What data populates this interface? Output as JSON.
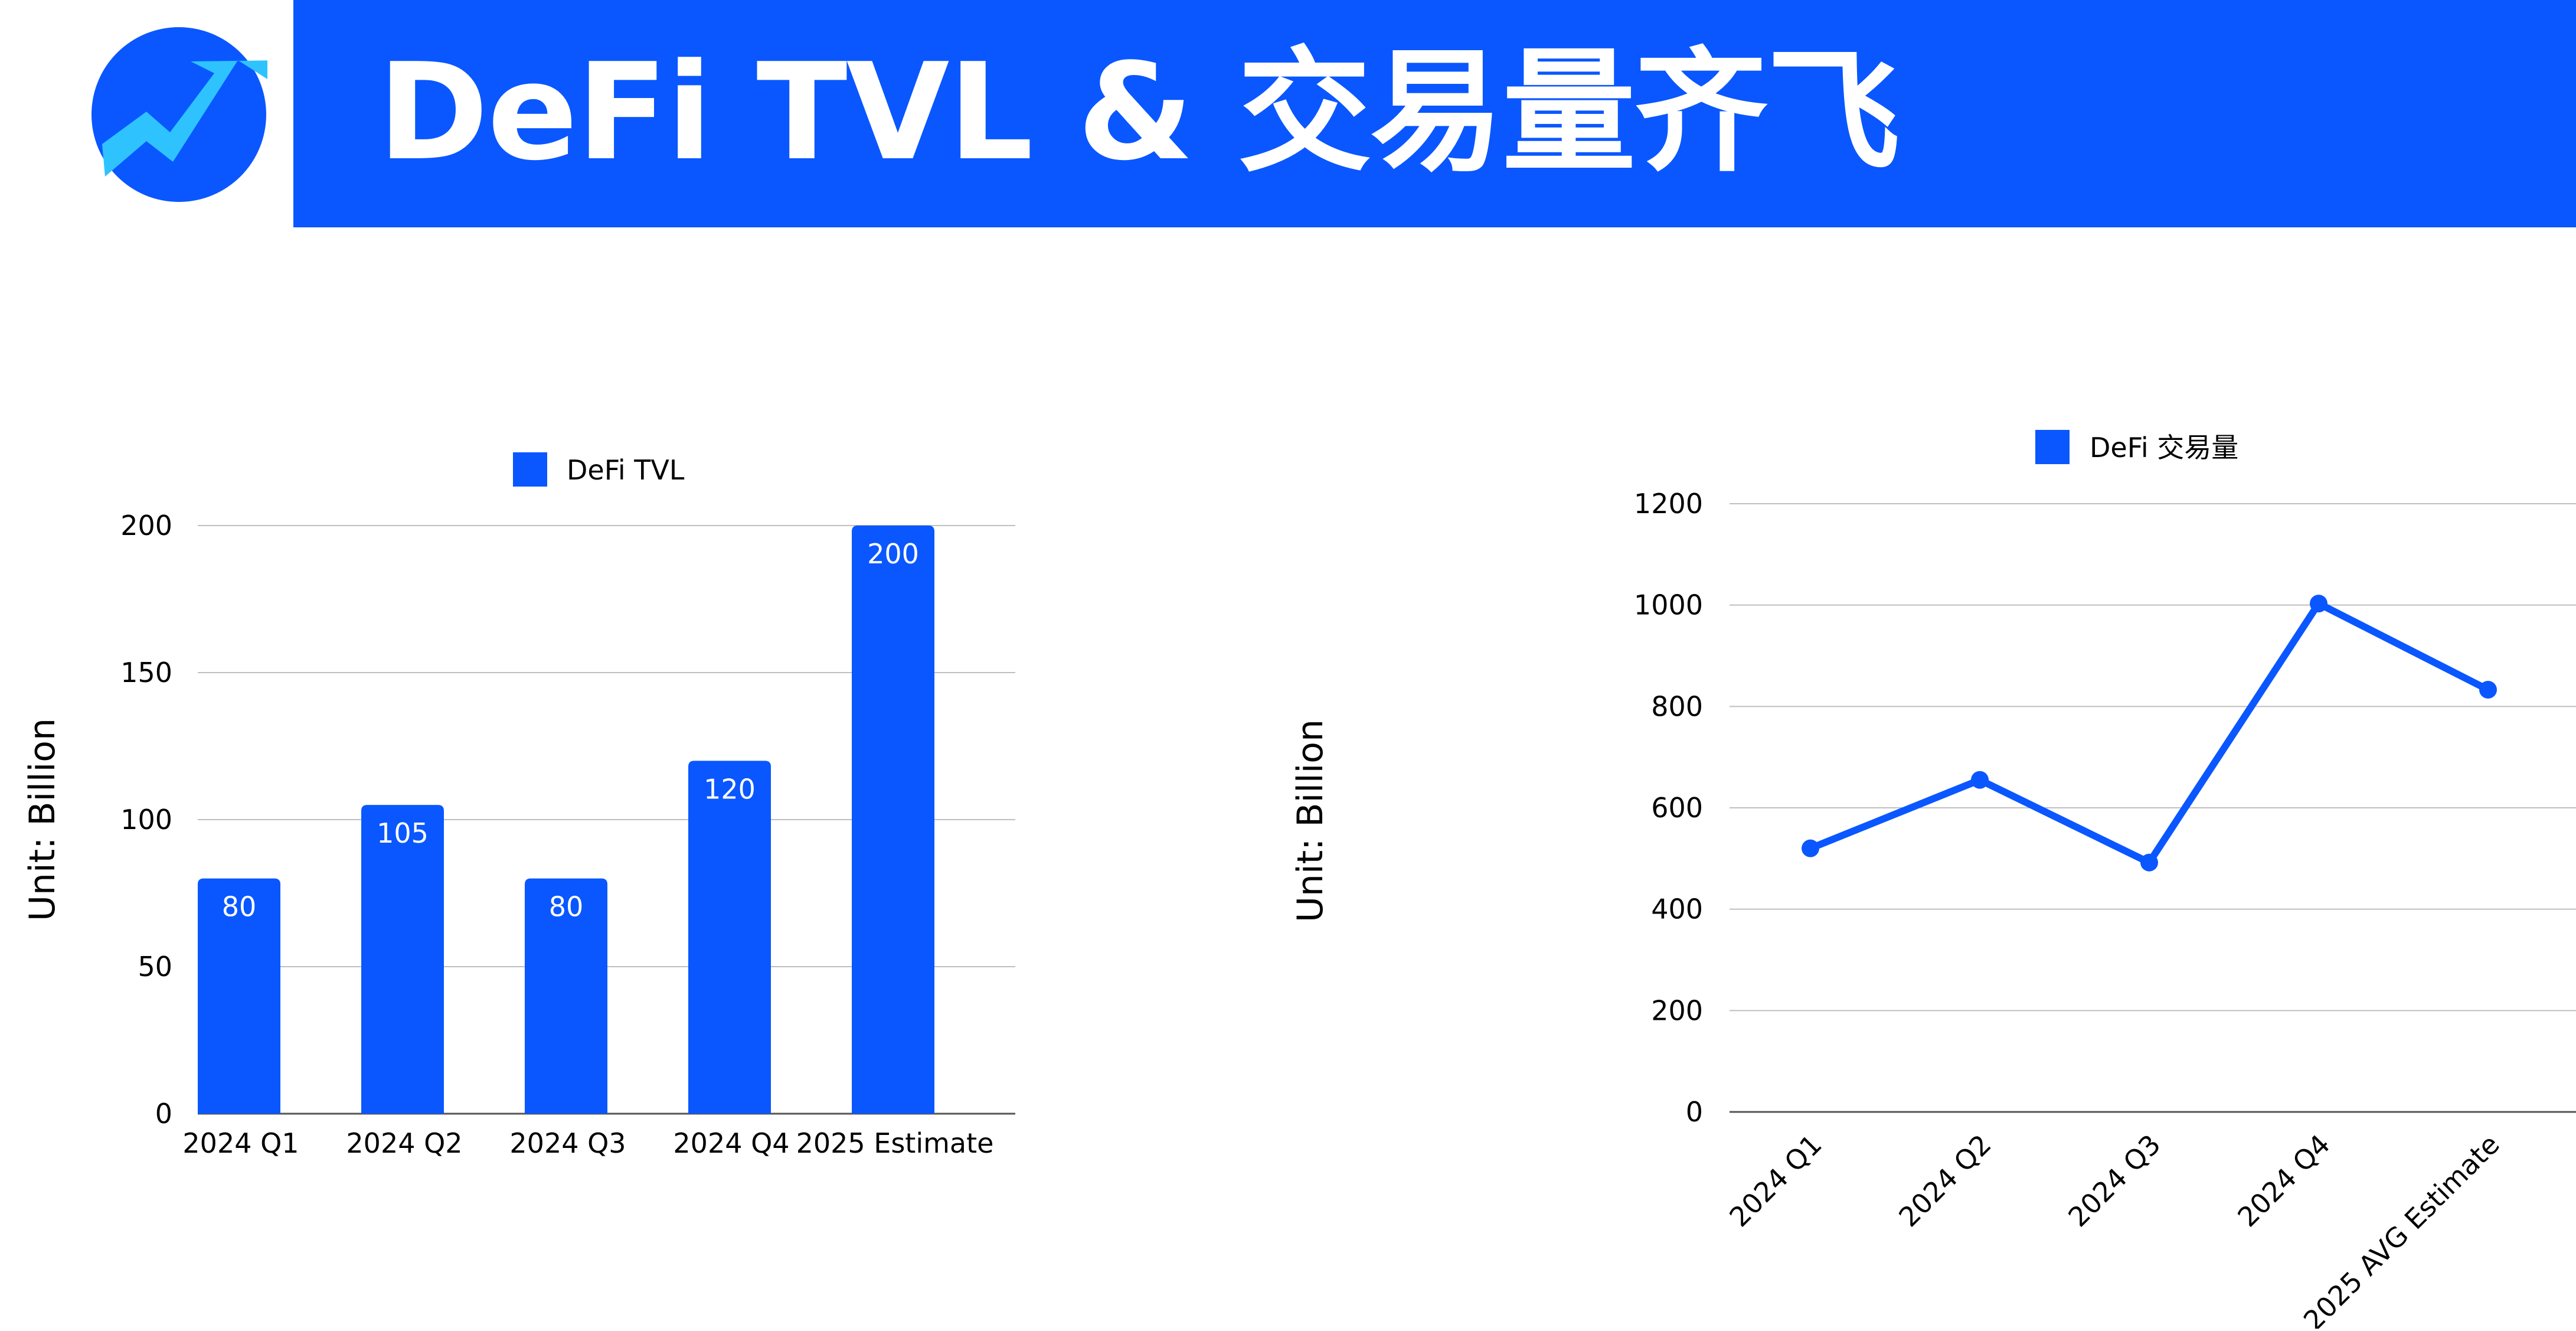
{
  "header": {
    "title": "DeFi TVL & 交易量齐飞"
  },
  "colors": {
    "brand": "#0a57ff",
    "logo_accent": "#2ec3ff",
    "grid": "#bfbfbf",
    "text": "#000000"
  },
  "logo": {
    "icon": "trend-up-icon"
  },
  "chart_data": [
    {
      "type": "bar",
      "title": "",
      "categories": [
        "2024 Q1",
        "2024 Q2",
        "2024 Q3",
        "2024 Q4",
        "2025 Estimate"
      ],
      "series": [
        {
          "name": "DeFi TVL",
          "values": [
            80,
            105,
            80,
            120,
            200
          ]
        }
      ],
      "ylabel": "Unit:  Billion",
      "xlabel": "",
      "ylim": [
        0,
        200
      ],
      "yticks": [
        0,
        50,
        100,
        150,
        200
      ],
      "grid": true,
      "data_labels": true,
      "legend": "top-center"
    },
    {
      "type": "line",
      "title": "",
      "categories": [
        "2024 Q1",
        "2024 Q2",
        "2024 Q3",
        "2024 Q4",
        "2025 AVG Estimate"
      ],
      "series": [
        {
          "name": "DeFi 交易量",
          "values": [
            520,
            655,
            492,
            1003,
            833
          ]
        }
      ],
      "ylabel": "Unit:  Billion",
      "xlabel": "",
      "ylim": [
        0,
        1200
      ],
      "yticks": [
        0,
        200,
        400,
        600,
        800,
        1000,
        1200
      ],
      "grid": true,
      "data_labels": false,
      "legend": "top-center"
    }
  ]
}
